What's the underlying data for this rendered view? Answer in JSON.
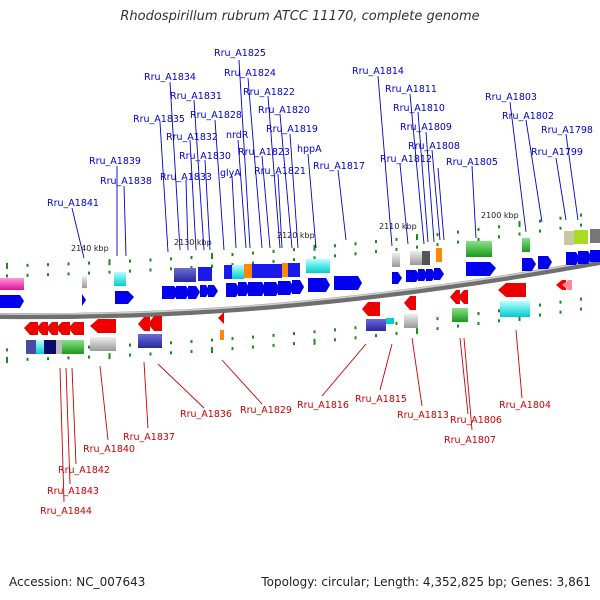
{
  "title": "Rhodospirillum rubrum ATCC 11170, complete genome",
  "footer": {
    "accession": "Accession: NC_007643",
    "topology": "Topology: circular; Length: 4,352,825 bp; Genes: 3,861"
  },
  "colors": {
    "forward_label": "#0000cc",
    "reverse_label": "#cc0000",
    "forward_gene": "#0000ee",
    "reverse_gene": "#ee0000",
    "backbone": "#888888",
    "tick": "#1a8a1a"
  },
  "scale_labels": [
    "2140 kbp",
    "2130 kbp",
    "2120 kbp",
    "2110 kbp",
    "2100 kbp"
  ],
  "forward_genes": [
    "Rru_A1841",
    "Rru_A1839",
    "Rru_A1838",
    "Rru_A1835",
    "Rru_A1834",
    "Rru_A1833",
    "Rru_A1832",
    "Rru_A1831",
    "Rru_A1830",
    "Rru_A1828",
    "glyA",
    "Rru_A1825",
    "nrdR",
    "Rru_A1824",
    "Rru_A1823",
    "Rru_A1822",
    "Rru_A1821",
    "Rru_A1820",
    "Rru_A1819",
    "hppA",
    "Rru_A1817",
    "Rru_A1814",
    "Rru_A1812",
    "Rru_A1811",
    "Rru_A1810",
    "Rru_A1809",
    "Rru_A1808",
    "Rru_A1805",
    "Rru_A1803",
    "Rru_A1802",
    "Rru_A1799",
    "Rru_A1798"
  ],
  "reverse_genes": [
    "Rru_A1844",
    "Rru_A1843",
    "Rru_A1842",
    "Rru_A1840",
    "Rru_A1837",
    "Rru_A1836",
    "Rru_A1829",
    "Rru_A1816",
    "Rru_A1815",
    "Rru_A1813",
    "Rru_A1806",
    "Rru_A1807",
    "Rru_A1804"
  ]
}
